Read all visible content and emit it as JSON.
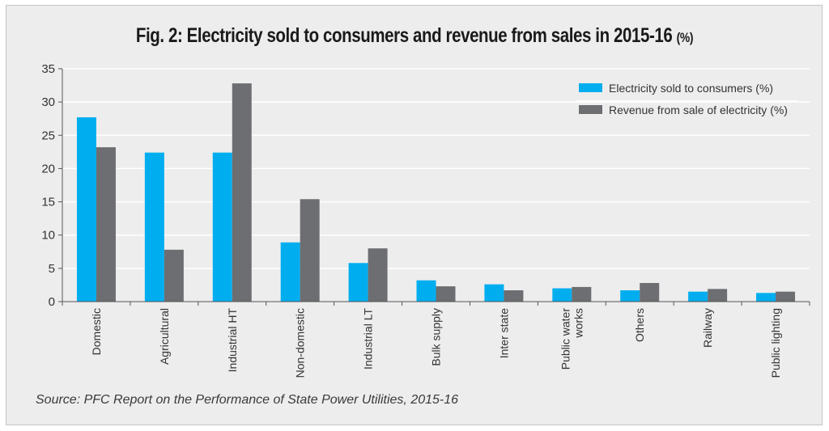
{
  "chart_data": {
    "type": "bar",
    "title": "Fig. 2: Electricity sold to consumers and revenue from sales in 2015-16",
    "title_suffix": "(%)",
    "xlabel": "",
    "ylabel": "",
    "ylim": [
      0,
      35
    ],
    "yticks": [
      0,
      5,
      10,
      15,
      20,
      25,
      30,
      35
    ],
    "grid": true,
    "legend_position": "top-right",
    "categories": [
      "Domestic",
      "Agricultural",
      "Industrial HT",
      "Non-domestic",
      "Industrial LT",
      "Bulk supply",
      "Inter state",
      "Public water works",
      "Others",
      "Railway",
      "Public lighting"
    ],
    "category_lines": [
      [
        "Domestic"
      ],
      [
        "Agricultural"
      ],
      [
        "Industrial HT"
      ],
      [
        "Non-domestic"
      ],
      [
        "Industrial LT"
      ],
      [
        "Bulk supply"
      ],
      [
        "Inter state"
      ],
      [
        "Public water",
        "works"
      ],
      [
        "Others"
      ],
      [
        "Railway"
      ],
      [
        "Public lighting"
      ]
    ],
    "series": [
      {
        "name": "Electricity sold to consumers (%)",
        "color": "#00aeef",
        "values": [
          27.7,
          22.4,
          22.4,
          8.9,
          5.8,
          3.2,
          2.6,
          2.0,
          1.7,
          1.5,
          1.3
        ]
      },
      {
        "name": "Revenue from sale of electricity (%)",
        "color": "#6d6e71",
        "values": [
          23.2,
          7.8,
          32.8,
          15.4,
          8.0,
          2.3,
          1.7,
          2.2,
          2.8,
          1.9,
          1.5
        ]
      }
    ],
    "source": "Source: PFC Report on the Performance of State Power Utilities, 2015-16"
  }
}
